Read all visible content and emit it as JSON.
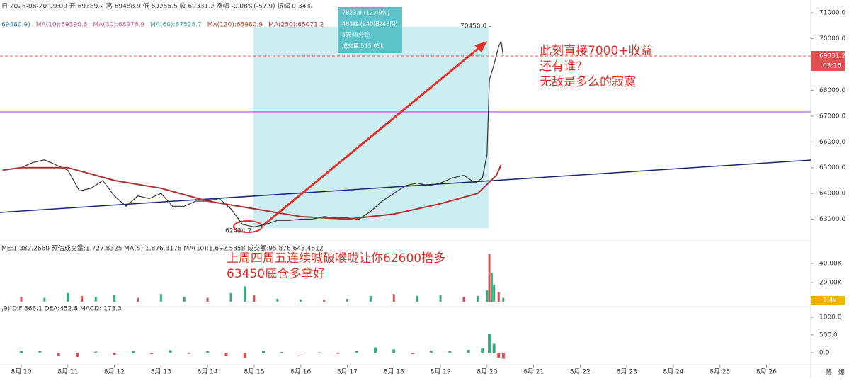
{
  "chart_data": {
    "type": "line",
    "header": "日 2026-08-20 09:00  开 69389.2  高 69488.9  低 69255.5  收 69331.2  涨幅 -0.08%(-57.9)  振幅 0.34%",
    "ma_legend": [
      "69480.9)",
      "MA(10):69390.6",
      "MA(30):68976.9",
      "MA(60):67528.7",
      "MA(120):65980.9",
      "MA(250):65071.2"
    ],
    "ma_colors": [
      "#2a7fd4",
      "#c04a8a",
      "#d05a9a",
      "#3aa0a0",
      "#c04a2a",
      "#b03030"
    ],
    "volume_legend": "ME:1,382.2660  预估成交量:1,727.8325  MA(5):1,876.3178  MA(10):1,692.5858  成交额:95,876,643.4612",
    "macd_legend": ",9)  DIF:366.1  DEA:452.8  MACD:-173.3",
    "measure": [
      "7823.9 (12.49%)",
      "483柱 (240阳243阴)",
      "5天45分钟",
      "成交量  515.05k"
    ],
    "high_label": "70450.0 -",
    "low_label": "62434.2",
    "annotation_top": [
      "此刻直接7000+收益",
      "还有谁?",
      "无敌是多么的寂寞"
    ],
    "annotation_bottom": [
      "上周四周五连续喊破喉咙让你62600撸多",
      "63450底仓多拿好"
    ],
    "last_price": 69331.2,
    "last_price_label": "69331.2",
    "countdown": "03:16",
    "volume_tag": "1.4k",
    "corner_icons": [
      "筹",
      "爆"
    ],
    "xlim": [
      9.544,
      26.95
    ],
    "xticks": [
      {
        "value": 10,
        "label": "8月 10"
      },
      {
        "value": 11,
        "label": "8月 11"
      },
      {
        "value": 12,
        "label": "8月 12"
      },
      {
        "value": 13,
        "label": "8月 13"
      },
      {
        "value": 14,
        "label": "8月 14"
      },
      {
        "value": 15,
        "label": "8月 15"
      },
      {
        "value": 16,
        "label": "8月 16"
      },
      {
        "value": 17,
        "label": "8月 17"
      },
      {
        "value": 18,
        "label": "8月 18"
      },
      {
        "value": 19,
        "label": "8月 19"
      },
      {
        "value": 20,
        "label": "8月 20"
      },
      {
        "value": 21,
        "label": "8月 21"
      },
      {
        "value": 22,
        "label": "8月 22"
      },
      {
        "value": 23,
        "label": "8月 23"
      },
      {
        "value": 24,
        "label": "8月 24"
      },
      {
        "value": 25,
        "label": "8月 25"
      },
      {
        "value": 26,
        "label": "8月 26"
      }
    ],
    "ylim": [
      62300,
      71500
    ],
    "yticks": [
      {
        "value": 71000,
        "label": "71000.0"
      },
      {
        "value": 70000,
        "label": "70000.0"
      },
      {
        "value": 69000,
        "label": "69000.0"
      },
      {
        "value": 68000,
        "label": "68000.0"
      },
      {
        "value": 67000,
        "label": "67000.0"
      },
      {
        "value": 66000,
        "label": "66000.0"
      },
      {
        "value": 65000,
        "label": "65000.0"
      },
      {
        "value": 64000,
        "label": "64000.0"
      },
      {
        "value": 63000,
        "label": "63000.0"
      }
    ],
    "series": [
      {
        "color": "#333333",
        "x": [
          9.6,
          10,
          10.25,
          10.5,
          10.75,
          11,
          11.25,
          11.5,
          11.75,
          12,
          12.25,
          12.5,
          12.75,
          13,
          13.25,
          13.5,
          13.75,
          14,
          14.25,
          14.5,
          14.75,
          15,
          15.25,
          15.5,
          15.75,
          16,
          16.25,
          16.5,
          16.75,
          17,
          17.25,
          17.5,
          17.75,
          18,
          18.25,
          18.5,
          18.75,
          19,
          19.25,
          19.5,
          19.75,
          19.9,
          20,
          20.05,
          20.15,
          20.25,
          20.3,
          20.35
        ],
        "values": [
          64900,
          65000,
          65200,
          65300,
          65100,
          64900,
          64100,
          64200,
          64500,
          63900,
          63500,
          63900,
          63800,
          64000,
          63500,
          63500,
          63700,
          63700,
          63800,
          63400,
          62800,
          62700,
          62800,
          62950,
          62950,
          63000,
          63000,
          63100,
          63050,
          63050,
          63000,
          63300,
          63700,
          64000,
          64300,
          64400,
          64300,
          64400,
          64600,
          64700,
          64400,
          64600,
          65500,
          68400,
          69000,
          69700,
          69900,
          69331.2
        ]
      },
      {
        "color": "#b03030",
        "x": [
          9.6,
          10,
          11,
          12,
          13,
          14,
          15,
          16,
          17,
          18,
          19,
          19.8,
          20.2,
          20.3
        ],
        "values": [
          64900,
          65000,
          65000,
          64500,
          64200,
          63700,
          63400,
          63100,
          63000,
          63200,
          63600,
          64000,
          64700,
          65100
        ]
      }
    ],
    "volume": {
      "color": "#e05050",
      "ylim": [
        0,
        60000
      ],
      "yticks": [
        {
          "value": 40000,
          "label": "40.00K"
        },
        {
          "value": 20000,
          "label": "20.00K"
        }
      ],
      "x": [
        10,
        10.5,
        11,
        11.3,
        11.6,
        12,
        12.5,
        13,
        13.5,
        14,
        14.5,
        14.8,
        15,
        15.5,
        16,
        16.5,
        17,
        17.5,
        18,
        18.5,
        19,
        19.5,
        19.8,
        20,
        20.05,
        20.1,
        20.15,
        20.25,
        20.35
      ],
      "values": [
        5000,
        4000,
        9000,
        6000,
        5000,
        7000,
        4000,
        8000,
        5000,
        4000,
        9000,
        16000,
        7000,
        3000,
        2000,
        2000,
        3000,
        6000,
        8000,
        6000,
        7000,
        5000,
        6000,
        12000,
        50000,
        30000,
        18000,
        10000,
        4000
      ]
    },
    "macd": {
      "ylim": [
        -340,
        1200
      ],
      "yticks": [
        {
          "value": 1000,
          "label": "1000.0"
        },
        {
          "value": 500,
          "label": "500.0"
        },
        {
          "value": 0,
          "label": "0.0"
        }
      ],
      "x": [
        10,
        10.4,
        10.8,
        11.2,
        11.6,
        12,
        12.4,
        12.8,
        13.2,
        13.6,
        14,
        14.4,
        14.8,
        15.2,
        15.6,
        16,
        16.4,
        16.8,
        17.2,
        17.6,
        18,
        18.4,
        18.8,
        19.2,
        19.6,
        19.9,
        20.05,
        20.15,
        20.25,
        20.35
      ],
      "values": [
        60,
        40,
        -80,
        -120,
        30,
        -60,
        50,
        -40,
        70,
        -30,
        40,
        -90,
        -150,
        60,
        20,
        -20,
        10,
        -30,
        40,
        150,
        90,
        -40,
        60,
        40,
        80,
        120,
        520,
        250,
        -140,
        -173.3
      ]
    }
  }
}
